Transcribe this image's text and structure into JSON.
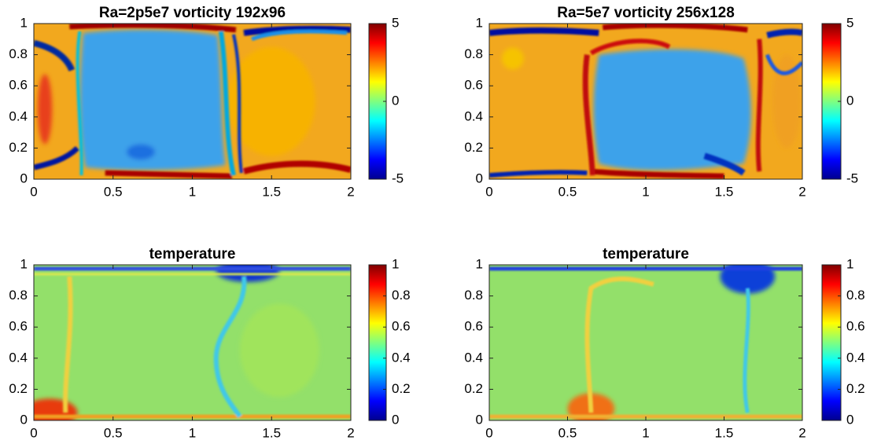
{
  "chart_data": [
    {
      "type": "heatmap",
      "title": "Ra=2p5e7  vorticity  192x96",
      "colormap": "jet",
      "xlim": [
        0,
        2
      ],
      "ylim": [
        0,
        1
      ],
      "xticks": [
        0,
        0.5,
        1,
        1.5,
        2
      ],
      "yticks": [
        0,
        0.2,
        0.4,
        0.6,
        0.8,
        1
      ],
      "clim": [
        -5,
        5
      ],
      "cticks": [
        -5,
        0,
        5
      ]
    },
    {
      "type": "heatmap",
      "title": "Ra=5e7  vorticity  256x128",
      "colormap": "jet",
      "xlim": [
        0,
        2
      ],
      "ylim": [
        0,
        1
      ],
      "xticks": [
        0,
        0.5,
        1,
        1.5,
        2
      ],
      "yticks": [
        0,
        0.2,
        0.4,
        0.6,
        0.8,
        1
      ],
      "clim": [
        -5,
        5
      ],
      "cticks": [
        -5,
        0,
        5
      ]
    },
    {
      "type": "heatmap",
      "title": "temperature",
      "colormap": "jet",
      "xlim": [
        0,
        2
      ],
      "ylim": [
        0,
        1
      ],
      "xticks": [
        0,
        0.5,
        1,
        1.5,
        2
      ],
      "yticks": [
        0,
        0.2,
        0.4,
        0.6,
        0.8,
        1
      ],
      "clim": [
        0,
        1
      ],
      "cticks": [
        0,
        0.2,
        0.4,
        0.6,
        0.8,
        1
      ]
    },
    {
      "type": "heatmap",
      "title": "temperature",
      "colormap": "jet",
      "xlim": [
        0,
        2
      ],
      "ylim": [
        0,
        1
      ],
      "xticks": [
        0,
        0.5,
        1,
        1.5,
        2
      ],
      "yticks": [
        0,
        0.2,
        0.4,
        0.6,
        0.8,
        1
      ],
      "clim": [
        0,
        1
      ],
      "cticks": [
        0,
        0.2,
        0.4,
        0.6,
        0.8,
        1
      ]
    }
  ]
}
